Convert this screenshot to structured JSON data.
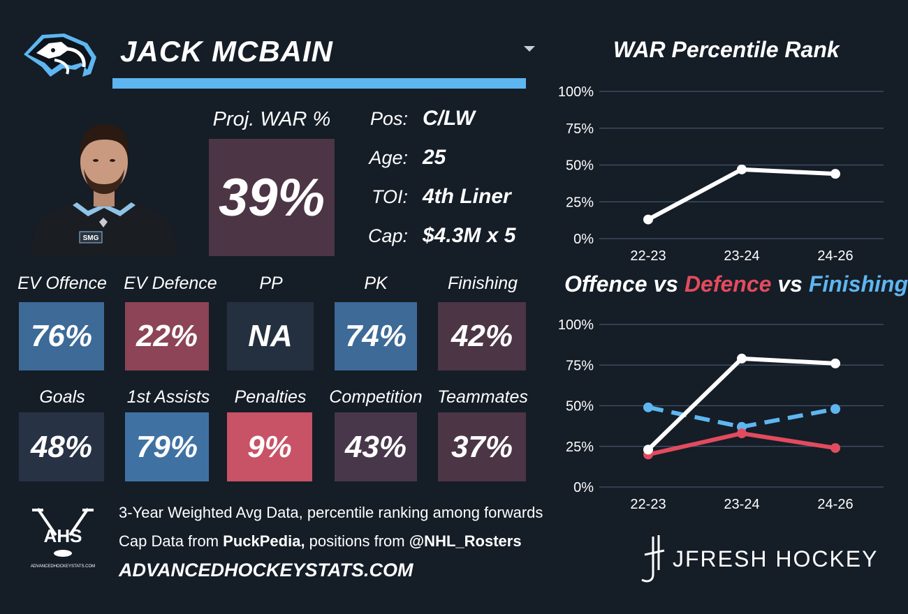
{
  "player": {
    "name": "JACK MCBAIN",
    "proj_war_label": "Proj. WAR %",
    "proj_war_value": "39%",
    "bio": [
      {
        "label": "Pos:",
        "value": "C/LW"
      },
      {
        "label": "Age:",
        "value": "25"
      },
      {
        "label": "TOI:",
        "value": "4th Liner"
      },
      {
        "label": "Cap:",
        "value": "$4.3M x 5"
      }
    ],
    "jersey_text": "SMG"
  },
  "tiles": [
    {
      "label": "EV Offence",
      "value": "76%",
      "color": "#3d6a97"
    },
    {
      "label": "EV Defence",
      "value": "22%",
      "color": "#8c4456"
    },
    {
      "label": "PP",
      "value": "NA",
      "color": "#243040"
    },
    {
      "label": "PK",
      "value": "74%",
      "color": "#3d6a97"
    },
    {
      "label": "Finishing",
      "value": "42%",
      "color": "#4c3545"
    },
    {
      "label": "Goals",
      "value": "48%",
      "color": "#283245"
    },
    {
      "label": "1st Assists",
      "value": "79%",
      "color": "#3f72a3"
    },
    {
      "label": "Penalties",
      "value": "9%",
      "color": "#c85266"
    },
    {
      "label": "Competition",
      "value": "43%",
      "color": "#48374a"
    },
    {
      "label": "Teammates",
      "value": "37%",
      "color": "#4c3545"
    }
  ],
  "footer": {
    "line1": "3-Year Weighted Avg Data, percentile ranking among forwards",
    "line2_prefix": "Cap Data from ",
    "line2_bold1": "PuckPedia,",
    "line2_mid": " positions from ",
    "line2_bold2": "@NHL_Rosters",
    "site": "ADVANCEDHOCKEYSTATS.COM",
    "ahs_logo_text": "AHS",
    "ahs_logo_subtext": "ADVANCEDHOCKEYSTATS.COM",
    "brand": "JFRESH HOCKEY"
  },
  "colors": {
    "background": "#151d27",
    "accent_blue": "#5eb6f0",
    "defence_red": "#e24b5e",
    "grid": "#44546a"
  },
  "chart_data": [
    {
      "type": "line",
      "title": "WAR Percentile Rank",
      "categories": [
        "22-23",
        "23-24",
        "24-26"
      ],
      "series": [
        {
          "values": [
            13,
            47,
            44
          ],
          "color": "#ffffff",
          "dashed": false
        }
      ],
      "yticks": [
        "0%",
        "25%",
        "50%",
        "75%",
        "100%"
      ],
      "ylim": [
        0,
        100
      ],
      "grid": true
    },
    {
      "type": "line",
      "title_parts": [
        {
          "text": "Offence",
          "color": "#ffffff"
        },
        {
          "text": " vs ",
          "color": "#ffffff"
        },
        {
          "text": "Defence",
          "color": "#e24b5e"
        },
        {
          "text": " vs ",
          "color": "#ffffff"
        },
        {
          "text": "Finishing",
          "color": "#5eb6f0"
        }
      ],
      "categories": [
        "22-23",
        "23-24",
        "24-26"
      ],
      "series": [
        {
          "values": [
            23,
            79,
            76
          ],
          "color": "#ffffff",
          "dashed": false
        },
        {
          "values": [
            20,
            33,
            24
          ],
          "color": "#e24b5e",
          "dashed": false
        },
        {
          "values": [
            49,
            37,
            48
          ],
          "color": "#5eb6f0",
          "dashed": true
        }
      ],
      "yticks": [
        "0%",
        "25%",
        "50%",
        "75%",
        "100%"
      ],
      "ylim": [
        0,
        100
      ],
      "grid": true
    }
  ]
}
